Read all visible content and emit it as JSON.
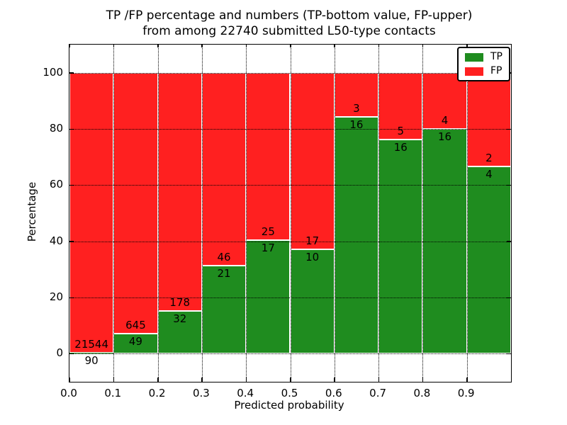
{
  "title": {
    "line1": "TP /FP percentage and numbers (TP-bottom value, FP-upper)",
    "line2": "from among 22740 submitted L50-type contacts"
  },
  "axes": {
    "xlabel": "Predicted probability",
    "ylabel": "Percentage"
  },
  "legend": {
    "position": "upper right",
    "entries": [
      {
        "label": "TP",
        "color": "#1f8c1f"
      },
      {
        "label": "FP",
        "color": "#ff2020"
      }
    ]
  },
  "colors": {
    "tp": "#1f8c1f",
    "fp": "#ff2020",
    "bar_edge": "#ffffff",
    "grid": "#000000",
    "background": "#ffffff"
  },
  "chart_data": {
    "type": "bar",
    "stacked": true,
    "normalized_to_percent": true,
    "title": "TP /FP percentage and numbers (TP-bottom value, FP-upper) from among 22740 submitted L50-type contacts",
    "xlabel": "Predicted probability",
    "ylabel": "Percentage",
    "xlim": [
      0.0,
      1.0
    ],
    "ylim": [
      -10,
      110
    ],
    "xticks": [
      "0.0",
      "0.1",
      "0.2",
      "0.3",
      "0.4",
      "0.5",
      "0.6",
      "0.7",
      "0.8",
      "0.9"
    ],
    "yticks": [
      0,
      20,
      40,
      60,
      80,
      100
    ],
    "grid": true,
    "bin_width": 0.1,
    "legend_position": "upper right",
    "series": [
      {
        "name": "TP",
        "color": "#1f8c1f",
        "counts": [
          90,
          49,
          32,
          21,
          17,
          10,
          16,
          16,
          16,
          4
        ]
      },
      {
        "name": "FP",
        "color": "#ff2020",
        "counts": [
          21544,
          645,
          178,
          46,
          25,
          17,
          3,
          5,
          4,
          2
        ]
      }
    ],
    "bins": [
      {
        "range": "0.0-0.1",
        "tp": 90,
        "fp": 21544,
        "tp_pct": 0.42
      },
      {
        "range": "0.1-0.2",
        "tp": 49,
        "fp": 645,
        "tp_pct": 7.06
      },
      {
        "range": "0.2-0.3",
        "tp": 32,
        "fp": 178,
        "tp_pct": 15.24
      },
      {
        "range": "0.3-0.4",
        "tp": 21,
        "fp": 46,
        "tp_pct": 31.34
      },
      {
        "range": "0.4-0.5",
        "tp": 17,
        "fp": 25,
        "tp_pct": 40.48
      },
      {
        "range": "0.5-0.6",
        "tp": 10,
        "fp": 17,
        "tp_pct": 37.04
      },
      {
        "range": "0.6-0.7",
        "tp": 16,
        "fp": 3,
        "tp_pct": 84.21
      },
      {
        "range": "0.7-0.8",
        "tp": 16,
        "fp": 5,
        "tp_pct": 76.19
      },
      {
        "range": "0.8-0.9",
        "tp": 16,
        "fp": 4,
        "tp_pct": 80.0
      },
      {
        "range": "0.9-1.0",
        "tp": 4,
        "fp": 2,
        "tp_pct": 66.67
      }
    ]
  }
}
